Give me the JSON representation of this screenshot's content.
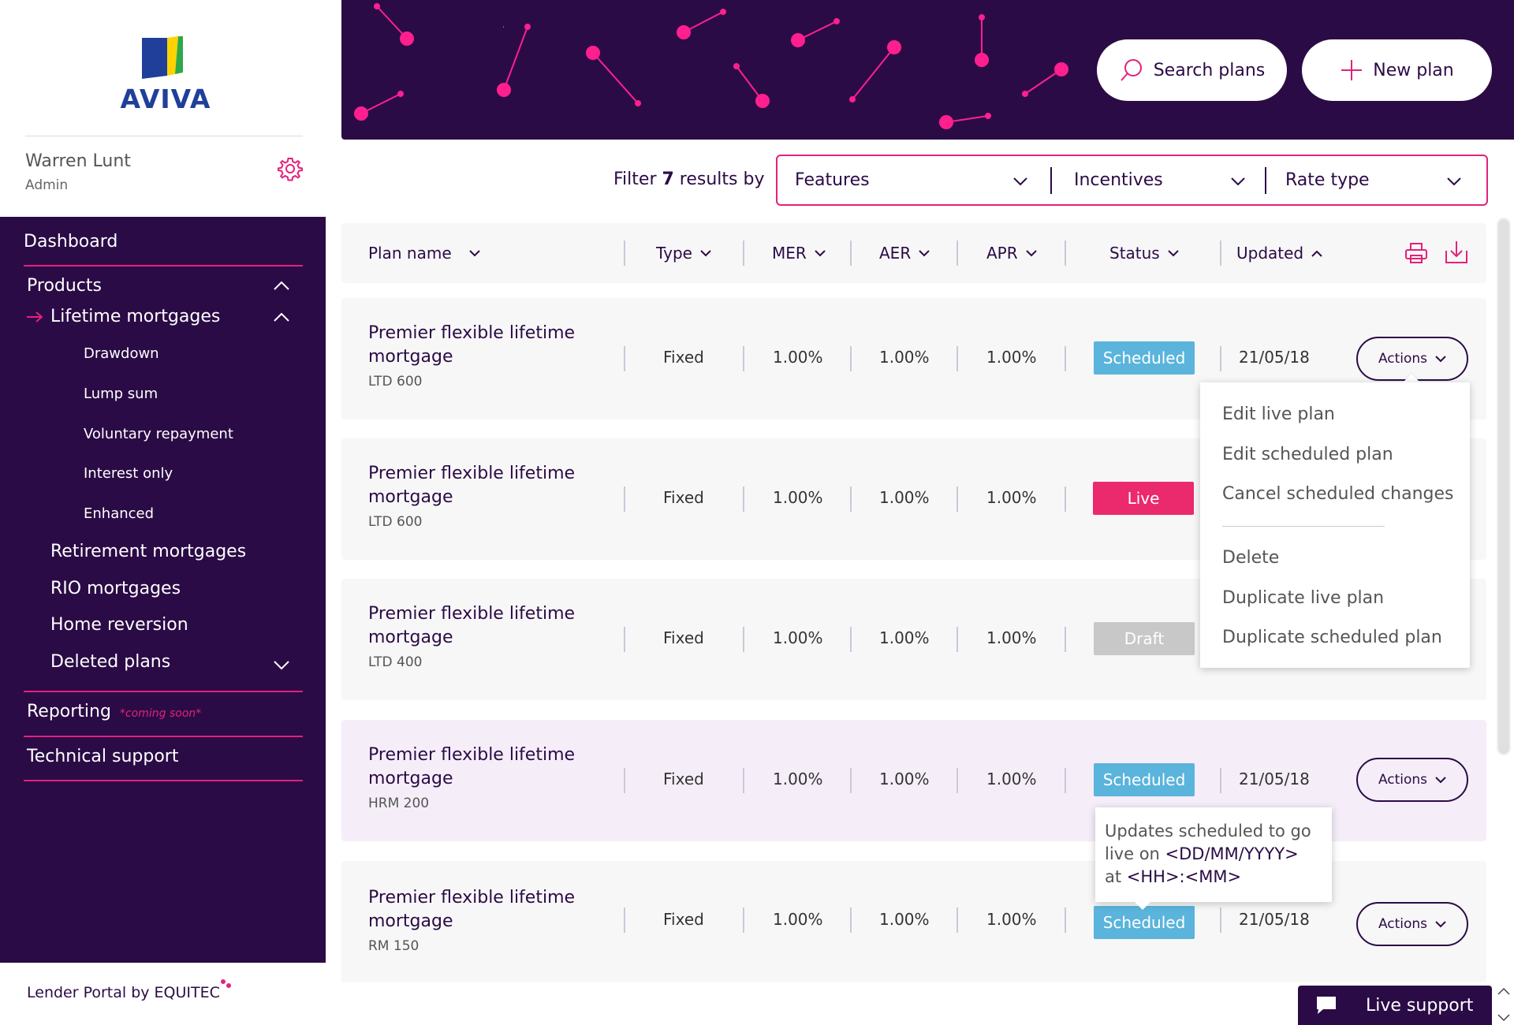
{
  "brand": {
    "logo_text": "AVIVA",
    "accent": "#e2227b",
    "navy": "#2b0b46",
    "footer": "Lender Portal by EQUITEC"
  },
  "user": {
    "name": "Warren Lunt",
    "role": "Admin"
  },
  "nav": {
    "dashboard": "Dashboard",
    "products": "Products",
    "lifetime": "Lifetime mortgages",
    "lifetime_sub": [
      "Drawdown",
      "Lump sum",
      "Voluntary repayment",
      "Interest only",
      "Enhanced"
    ],
    "retirement": "Retirement mortgages",
    "rio": "RIO mortgages",
    "home_reversion": "Home reversion",
    "deleted": "Deleted plans",
    "reporting": "Reporting",
    "reporting_note": "*coming soon*",
    "support": "Technical support"
  },
  "header": {
    "search": "Search plans",
    "new_plan": "New plan"
  },
  "filter": {
    "prefix": "Filter",
    "count": "7",
    "suffix": "results by",
    "features": "Features",
    "incentives": "Incentives",
    "rate_type": "Rate type"
  },
  "table": {
    "columns": {
      "plan_name": "Plan name",
      "type": "Type",
      "mer": "MER",
      "aer": "AER",
      "apr": "APR",
      "status": "Status",
      "updated": "Updated"
    },
    "rows": [
      {
        "name": "Premier flexible lifetime mortgage",
        "code": "LTD 600",
        "type": "Fixed",
        "mer": "1.00%",
        "aer": "1.00%",
        "apr": "1.00%",
        "status": "Scheduled",
        "updated": "21/05/18",
        "actions": "Actions"
      },
      {
        "name": "Premier flexible lifetime mortgage",
        "code": "LTD 600",
        "type": "Fixed",
        "mer": "1.00%",
        "aer": "1.00%",
        "apr": "1.00%",
        "status": "Live"
      },
      {
        "name": "Premier flexible lifetime mortgage",
        "code": "LTD 400",
        "type": "Fixed",
        "mer": "1.00%",
        "aer": "1.00%",
        "apr": "1.00%",
        "status": "Draft"
      },
      {
        "name": "Premier flexible lifetime mortgage",
        "code": "HRM 200",
        "type": "Fixed",
        "mer": "1.00%",
        "aer": "1.00%",
        "apr": "1.00%",
        "status": "Scheduled",
        "updated": "21/05/18",
        "actions": "Actions"
      },
      {
        "name": "Premier flexible lifetime mortgage",
        "code": "RM 150",
        "type": "Fixed",
        "mer": "1.00%",
        "aer": "1.00%",
        "apr": "1.00%",
        "status": "Scheduled",
        "updated": "21/05/18",
        "actions": "Actions"
      }
    ]
  },
  "menu": {
    "items": [
      "Edit live plan",
      "Edit scheduled plan",
      "Cancel scheduled changes",
      "Delete",
      "Duplicate live plan",
      "Duplicate scheduled plan"
    ]
  },
  "tooltip": {
    "line1": "Updates scheduled to go",
    "line2a": "live on ",
    "date": "<DD/MM/YYYY>",
    "line3a": "at ",
    "time": "<HH>:<MM>"
  },
  "live_support": "Live support"
}
